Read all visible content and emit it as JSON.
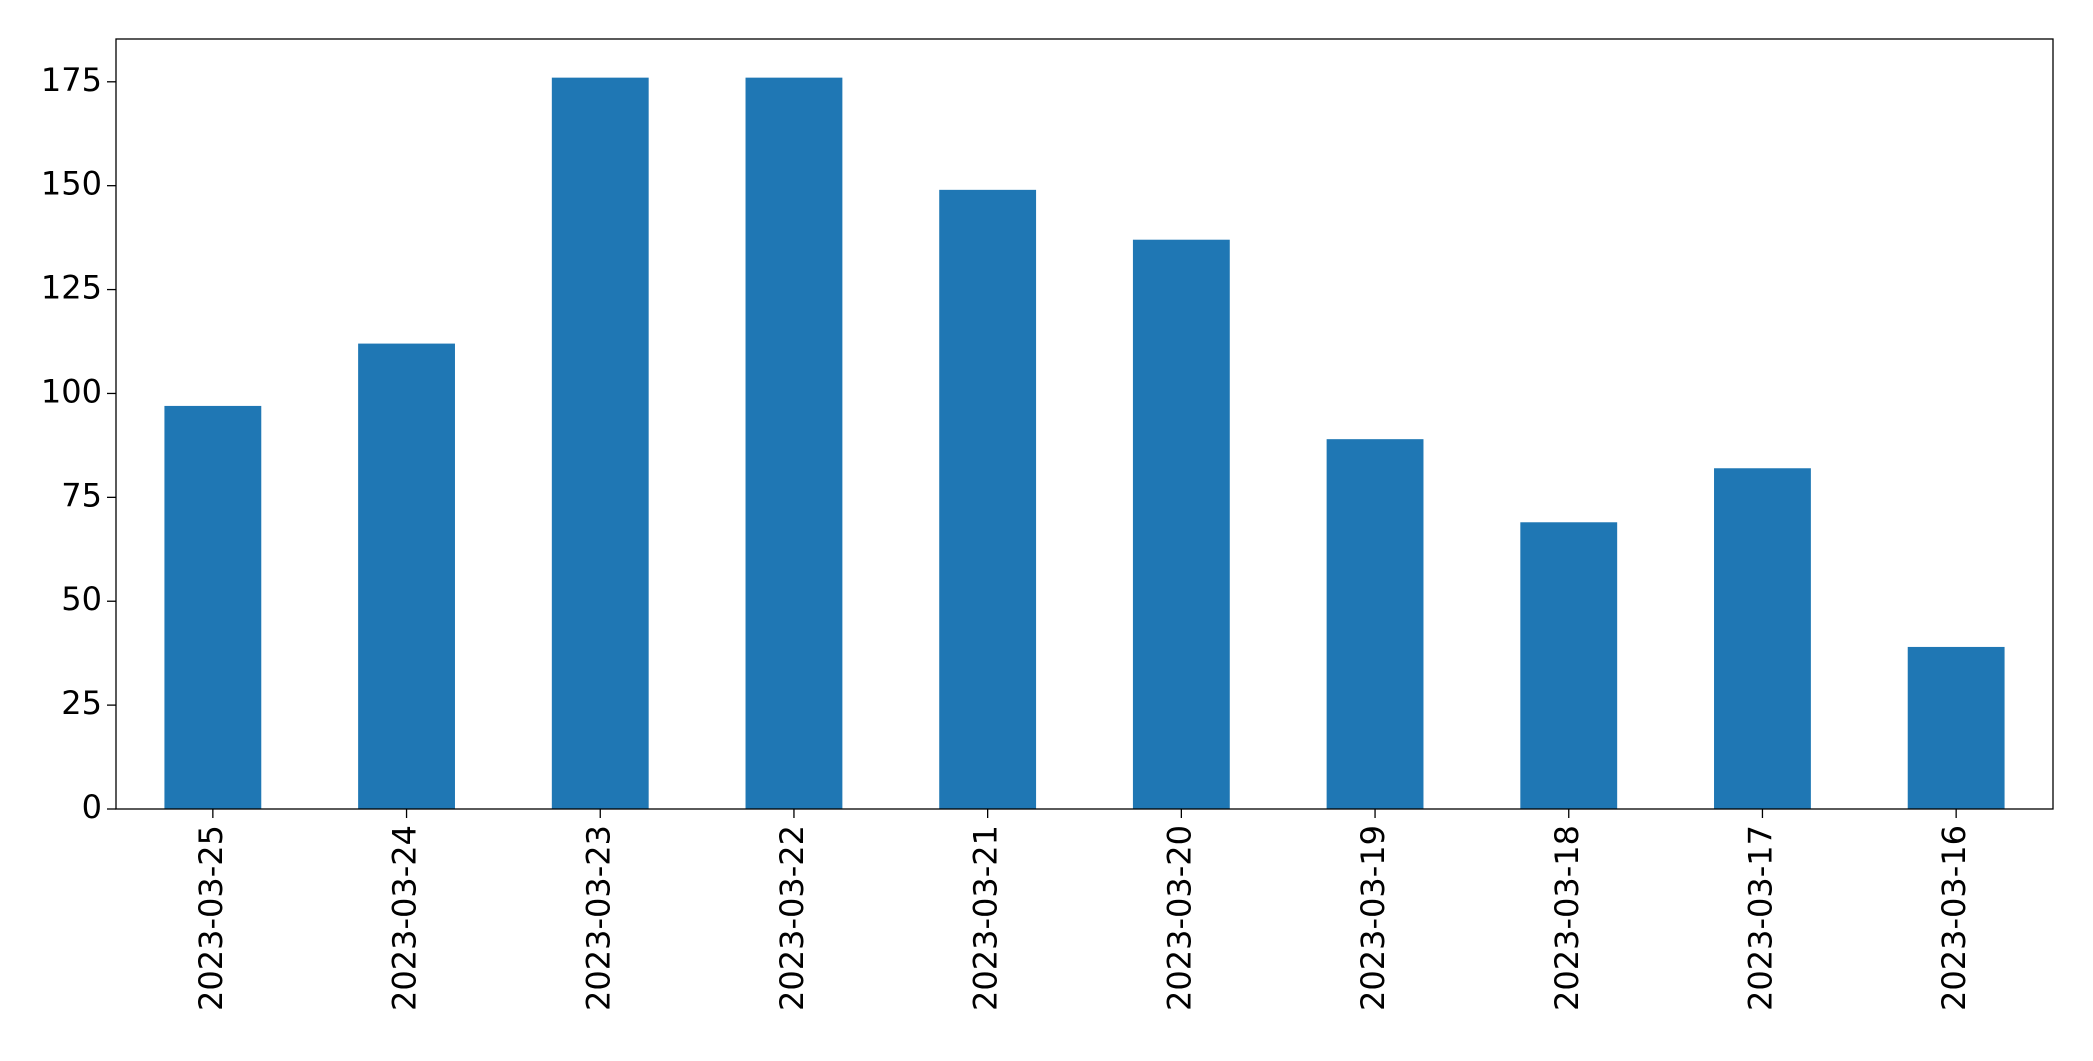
{
  "chart_data": {
    "type": "bar",
    "categories": [
      "2023-03-25",
      "2023-03-24",
      "2023-03-23",
      "2023-03-22",
      "2023-03-21",
      "2023-03-20",
      "2023-03-19",
      "2023-03-18",
      "2023-03-17",
      "2023-03-16"
    ],
    "values": [
      97,
      112,
      176,
      176,
      149,
      137,
      89,
      69,
      82,
      39
    ],
    "color": "#1f77b4",
    "ylim": [
      0,
      185.3
    ],
    "yticks": [
      0,
      25,
      50,
      75,
      100,
      125,
      150,
      175
    ],
    "grid": false
  }
}
